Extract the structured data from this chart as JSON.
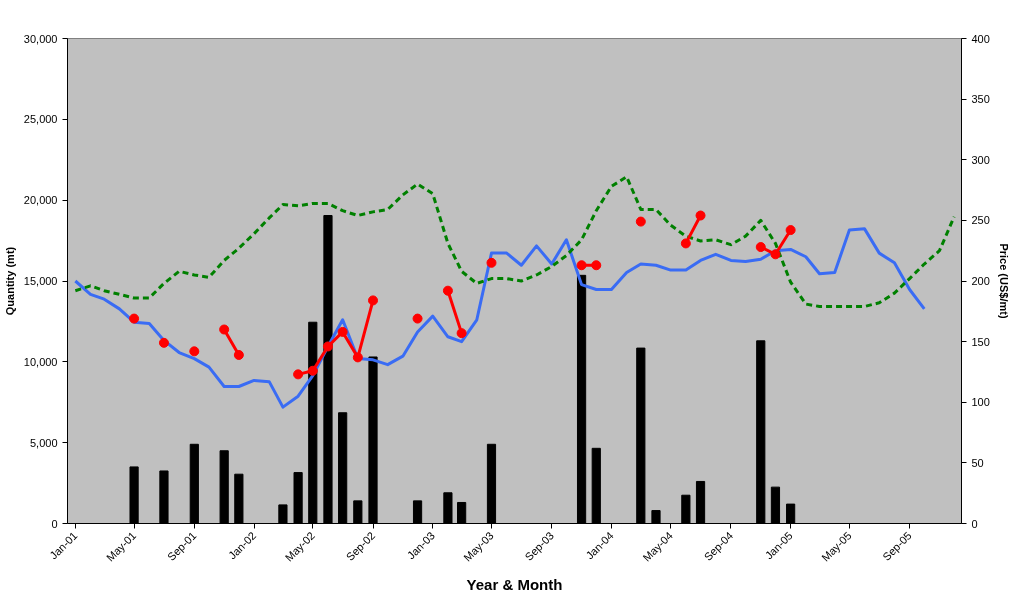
{
  "chart_data": {
    "type": "bar",
    "xlabel": "Year & Month",
    "ylabel": "Quantity (mt)",
    "y2label": "Price (US$/mt)",
    "x": [
      "2001-01",
      "2001-02",
      "2001-03",
      "2001-04",
      "2001-05",
      "2001-06",
      "2001-07",
      "2001-08",
      "2001-09",
      "2001-10",
      "2001-11",
      "2001-12",
      "2002-01",
      "2002-02",
      "2002-03",
      "2002-04",
      "2002-05",
      "2002-06",
      "2002-07",
      "2002-08",
      "2002-09",
      "2002-10",
      "2002-11",
      "2002-12",
      "2003-01",
      "2003-02",
      "2003-03",
      "2003-04",
      "2003-05",
      "2003-06",
      "2003-07",
      "2003-08",
      "2003-09",
      "2003-10",
      "2003-11",
      "2003-12",
      "2004-01",
      "2004-02",
      "2004-03",
      "2004-04",
      "2004-05",
      "2004-06",
      "2004-07",
      "2004-08",
      "2004-09",
      "2004-10",
      "2004-11",
      "2004-12",
      "2005-01",
      "2005-02",
      "2005-03",
      "2005-04",
      "2005-05",
      "2005-06",
      "2005-07",
      "2005-08",
      "2005-09",
      "2005-10",
      "2005-11",
      "2005-12"
    ],
    "series": [
      {
        "color": "#000000",
        "x": [
          "2001-05",
          "2001-07",
          "2001-09",
          "2001-11",
          "2001-12",
          "2002-03",
          "2002-04",
          "2002-05",
          "2002-06",
          "2002-07",
          "2002-08",
          "2002-09",
          "2002-12",
          "2003-02",
          "2003-03",
          "2003-05",
          "2003-11",
          "2003-12",
          "2004-03",
          "2004-04",
          "2004-06",
          "2004-07",
          "2004-11",
          "2004-12",
          "2005-01"
        ],
        "values": [
          3500,
          3250,
          4900,
          4500,
          3050,
          1150,
          3150,
          12450,
          19050,
          6850,
          1400,
          10300,
          1400,
          1900,
          1300,
          4900,
          15350,
          4650,
          10850,
          800,
          1750,
          2600,
          11300,
          2250,
          1200
        ]
      },
      {
        "type": "line",
        "color": "#3a6cf4",
        "axis": "y2",
        "values": [
          200,
          189,
          185,
          177,
          166,
          165,
          151,
          141,
          136,
          129,
          113,
          113,
          118,
          117,
          96,
          105,
          122,
          146,
          168,
          136,
          135,
          131,
          138,
          158,
          171,
          154,
          150,
          168,
          223,
          223,
          213,
          229,
          214,
          234,
          197,
          193,
          193,
          207,
          214,
          213,
          209,
          209,
          217,
          222,
          217,
          216,
          218,
          225,
          226,
          220,
          206,
          207,
          242,
          243,
          223,
          215,
          193,
          177,
          null,
          null
        ]
      },
      {
        "type": "line",
        "color": "#008000",
        "axis": "y2",
        "line_style": "dashed",
        "values": [
          192,
          196,
          192,
          189,
          186,
          186,
          198,
          208,
          205,
          203,
          217,
          227,
          239,
          252,
          263,
          262,
          264,
          264,
          258,
          254,
          257,
          259,
          271,
          280,
          272,
          231,
          208,
          198,
          202,
          202,
          200,
          205,
          212,
          221,
          234,
          258,
          278,
          286,
          259,
          259,
          246,
          237,
          233,
          234,
          230,
          237,
          250,
          231,
          199,
          181,
          179,
          179,
          179,
          179,
          182,
          190,
          202,
          214,
          225,
          253
        ]
      },
      {
        "type": "line",
        "color": "#ff0000",
        "axis": "y2",
        "marker": "circle",
        "values": [
          null,
          null,
          null,
          null,
          169,
          null,
          149,
          null,
          142,
          null,
          160,
          139,
          null,
          null,
          null,
          123,
          126,
          146,
          158,
          137,
          184,
          null,
          null,
          169,
          null,
          192,
          157,
          null,
          215,
          null,
          null,
          null,
          null,
          null,
          213,
          213,
          null,
          null,
          249,
          null,
          null,
          231,
          254,
          null,
          null,
          null,
          228,
          222,
          242,
          null,
          null,
          null,
          null,
          null,
          null,
          null,
          null,
          null,
          null,
          null
        ]
      }
    ],
    "xlim": [
      "2000-12-16",
      "2005-12-16"
    ],
    "xticks": [
      {
        "value": "2001-01",
        "label": "Jan-01"
      },
      {
        "value": "2001-05",
        "label": "May-01"
      },
      {
        "value": "2001-09",
        "label": "Sep-01"
      },
      {
        "value": "2002-01",
        "label": "Jan-02"
      },
      {
        "value": "2002-05",
        "label": "May-02"
      },
      {
        "value": "2002-09",
        "label": "Sep-02"
      },
      {
        "value": "2003-01",
        "label": "Jan-03"
      },
      {
        "value": "2003-05",
        "label": "May-03"
      },
      {
        "value": "2003-09",
        "label": "Sep-03"
      },
      {
        "value": "2004-01",
        "label": "Jan-04"
      },
      {
        "value": "2004-05",
        "label": "May-04"
      },
      {
        "value": "2004-09",
        "label": "Sep-04"
      },
      {
        "value": "2005-01",
        "label": "Jan-05"
      },
      {
        "value": "2005-05",
        "label": "May-05"
      },
      {
        "value": "2005-09",
        "label": "Sep-05"
      }
    ],
    "ylim": [
      0,
      30000
    ],
    "yticks": [
      0,
      {
        "value": 5000,
        "label": "5,000"
      },
      {
        "value": 10000,
        "label": "10,000"
      },
      {
        "value": 15000,
        "label": "15,000"
      },
      {
        "value": 20000,
        "label": "20,000"
      },
      {
        "value": 25000,
        "label": "25,000"
      },
      {
        "value": 30000,
        "label": "30,000"
      }
    ],
    "y2lim": [
      0,
      400
    ],
    "y2ticks": [
      0,
      50,
      100,
      150,
      200,
      250,
      300,
      350,
      400
    ],
    "grid": false
  }
}
